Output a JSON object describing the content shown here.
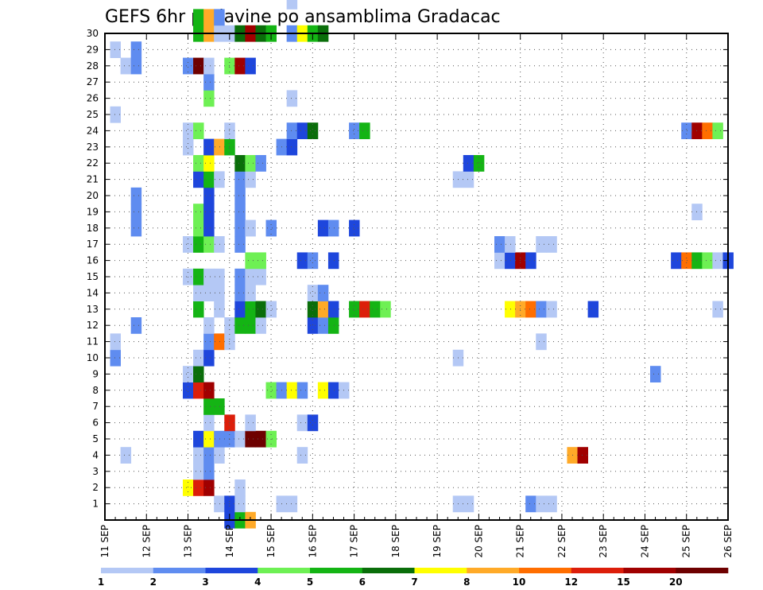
{
  "chart_data": {
    "type": "heatmap",
    "title": "GEFS 6hr padavine po ansamblima Gradacac",
    "xlabel": "",
    "ylabel": "",
    "x_ticks": [
      "11 SEP",
      "12 SEP",
      "13 SEP",
      "14 SEP",
      "15 SEP",
      "16 SEP",
      "17 SEP",
      "18 SEP",
      "19 SEP",
      "20 SEP",
      "21 SEP",
      "22 SEP",
      "23 SEP",
      "24 SEP",
      "25 SEP",
      "26 SEP"
    ],
    "y_ticks": [
      1,
      2,
      3,
      4,
      5,
      6,
      7,
      8,
      9,
      10,
      11,
      12,
      13,
      14,
      15,
      16,
      17,
      18,
      19,
      20,
      21,
      22,
      23,
      24,
      25,
      26,
      27,
      28,
      29,
      30
    ],
    "xlim": [
      0,
      60
    ],
    "ylim": [
      0,
      30
    ],
    "grid": true,
    "legend": {
      "placement": "bottom",
      "levels": [
        1,
        2,
        3,
        4,
        5,
        6,
        7,
        8,
        10,
        12,
        15,
        20
      ],
      "colors": [
        "#b4c8f5",
        "#5f8cf0",
        "#1e46dc",
        "#6ef054",
        "#14b414",
        "#0a6e0a",
        "#ffff00",
        "#ffaa28",
        "#ff6e00",
        "#dc1e0a",
        "#a00000",
        "#6e0000"
      ]
    },
    "cells": [
      {
        "t": 12,
        "m": 0,
        "v": 3
      },
      {
        "t": 13,
        "m": 0,
        "v": 5
      },
      {
        "t": 14,
        "m": 0,
        "v": 8
      },
      {
        "t": 11,
        "m": 1,
        "v": 1
      },
      {
        "t": 12,
        "m": 1,
        "v": 3
      },
      {
        "t": 13,
        "m": 1,
        "v": 1
      },
      {
        "t": 17,
        "m": 1,
        "v": 1
      },
      {
        "t": 18,
        "m": 1,
        "v": 1
      },
      {
        "t": 34,
        "m": 1,
        "v": 1
      },
      {
        "t": 35,
        "m": 1,
        "v": 1
      },
      {
        "t": 41,
        "m": 1,
        "v": 2
      },
      {
        "t": 42,
        "m": 1,
        "v": 1
      },
      {
        "t": 43,
        "m": 1,
        "v": 1
      },
      {
        "t": 8,
        "m": 2,
        "v": 7.5
      },
      {
        "t": 9,
        "m": 2,
        "v": 13
      },
      {
        "t": 10,
        "m": 2,
        "v": 16
      },
      {
        "t": 13,
        "m": 2,
        "v": 1
      },
      {
        "t": 9,
        "m": 3,
        "v": 1
      },
      {
        "t": 10,
        "m": 3,
        "v": 2
      },
      {
        "t": 2,
        "m": 4,
        "v": 1
      },
      {
        "t": 9,
        "m": 4,
        "v": 1
      },
      {
        "t": 10,
        "m": 4,
        "v": 2
      },
      {
        "t": 11,
        "m": 4,
        "v": 1
      },
      {
        "t": 19,
        "m": 4,
        "v": 1
      },
      {
        "t": 45,
        "m": 4,
        "v": 9
      },
      {
        "t": 46,
        "m": 4,
        "v": 18
      },
      {
        "t": 9,
        "m": 5,
        "v": 3
      },
      {
        "t": 10,
        "m": 5,
        "v": 7.5
      },
      {
        "t": 11,
        "m": 5,
        "v": 2
      },
      {
        "t": 12,
        "m": 5,
        "v": 2
      },
      {
        "t": 13,
        "m": 5,
        "v": 1
      },
      {
        "t": 14,
        "m": 5,
        "v": 25
      },
      {
        "t": 15,
        "m": 5,
        "v": 25
      },
      {
        "t": 16,
        "m": 5,
        "v": 4.5
      },
      {
        "t": 10,
        "m": 6,
        "v": 1
      },
      {
        "t": 12,
        "m": 6,
        "v": 13
      },
      {
        "t": 14,
        "m": 6,
        "v": 1
      },
      {
        "t": 19,
        "m": 6,
        "v": 1
      },
      {
        "t": 20,
        "m": 6,
        "v": 3
      },
      {
        "t": 10,
        "m": 7,
        "v": 5
      },
      {
        "t": 11,
        "m": 7,
        "v": 5
      },
      {
        "t": 8,
        "m": 8,
        "v": 3
      },
      {
        "t": 9,
        "m": 8,
        "v": 13
      },
      {
        "t": 10,
        "m": 8,
        "v": 16
      },
      {
        "t": 16,
        "m": 8,
        "v": 4.5
      },
      {
        "t": 17,
        "m": 8,
        "v": 2
      },
      {
        "t": 18,
        "m": 8,
        "v": 7.5
      },
      {
        "t": 19,
        "m": 8,
        "v": 2
      },
      {
        "t": 21,
        "m": 8,
        "v": 7.5
      },
      {
        "t": 22,
        "m": 8,
        "v": 3
      },
      {
        "t": 23,
        "m": 8,
        "v": 1
      },
      {
        "t": 8,
        "m": 9,
        "v": 1
      },
      {
        "t": 9,
        "m": 9,
        "v": 6.5
      },
      {
        "t": 53,
        "m": 9,
        "v": 2
      },
      {
        "t": 1,
        "m": 10,
        "v": 2
      },
      {
        "t": 9,
        "m": 10,
        "v": 1
      },
      {
        "t": 10,
        "m": 10,
        "v": 3
      },
      {
        "t": 34,
        "m": 10,
        "v": 1
      },
      {
        "t": 1,
        "m": 11,
        "v": 1
      },
      {
        "t": 10,
        "m": 11,
        "v": 2
      },
      {
        "t": 11,
        "m": 11,
        "v": 11
      },
      {
        "t": 12,
        "m": 11,
        "v": 1
      },
      {
        "t": 42,
        "m": 11,
        "v": 1
      },
      {
        "t": 3,
        "m": 12,
        "v": 2
      },
      {
        "t": 10,
        "m": 12,
        "v": 1
      },
      {
        "t": 12,
        "m": 12,
        "v": 1
      },
      {
        "t": 13,
        "m": 12,
        "v": 5
      },
      {
        "t": 14,
        "m": 12,
        "v": 5
      },
      {
        "t": 15,
        "m": 12,
        "v": 1
      },
      {
        "t": 20,
        "m": 12,
        "v": 3
      },
      {
        "t": 21,
        "m": 12,
        "v": 2
      },
      {
        "t": 22,
        "m": 12,
        "v": 5.5
      },
      {
        "t": 9,
        "m": 13,
        "v": 5.5
      },
      {
        "t": 11,
        "m": 13,
        "v": 1
      },
      {
        "t": 13,
        "m": 13,
        "v": 3
      },
      {
        "t": 14,
        "m": 13,
        "v": 5.5
      },
      {
        "t": 15,
        "m": 13,
        "v": 6.5
      },
      {
        "t": 16,
        "m": 13,
        "v": 1
      },
      {
        "t": 20,
        "m": 13,
        "v": 6.5
      },
      {
        "t": 21,
        "m": 13,
        "v": 9
      },
      {
        "t": 22,
        "m": 13,
        "v": 3
      },
      {
        "t": 24,
        "m": 13,
        "v": 5.5
      },
      {
        "t": 25,
        "m": 13,
        "v": 13
      },
      {
        "t": 26,
        "m": 13,
        "v": 5.5
      },
      {
        "t": 27,
        "m": 13,
        "v": 4.5
      },
      {
        "t": 39,
        "m": 13,
        "v": 7.5
      },
      {
        "t": 40,
        "m": 13,
        "v": 9
      },
      {
        "t": 41,
        "m": 13,
        "v": 11
      },
      {
        "t": 42,
        "m": 13,
        "v": 2
      },
      {
        "t": 43,
        "m": 13,
        "v": 1
      },
      {
        "t": 47,
        "m": 13,
        "v": 3
      },
      {
        "t": 59,
        "m": 13,
        "v": 1
      },
      {
        "t": 9,
        "m": 14,
        "v": 1
      },
      {
        "t": 10,
        "m": 14,
        "v": 1
      },
      {
        "t": 11,
        "m": 14,
        "v": 1
      },
      {
        "t": 13,
        "m": 14,
        "v": 2
      },
      {
        "t": 14,
        "m": 14,
        "v": 1
      },
      {
        "t": 20,
        "m": 14,
        "v": 1
      },
      {
        "t": 21,
        "m": 14,
        "v": 2
      },
      {
        "t": 8,
        "m": 15,
        "v": 1
      },
      {
        "t": 9,
        "m": 15,
        "v": 5.5
      },
      {
        "t": 10,
        "m": 15,
        "v": 1
      },
      {
        "t": 11,
        "m": 15,
        "v": 1
      },
      {
        "t": 13,
        "m": 15,
        "v": 2
      },
      {
        "t": 14,
        "m": 15,
        "v": 1
      },
      {
        "t": 15,
        "m": 15,
        "v": 1
      },
      {
        "t": 14,
        "m": 16,
        "v": 4.5
      },
      {
        "t": 15,
        "m": 16,
        "v": 4.5
      },
      {
        "t": 19,
        "m": 16,
        "v": 3
      },
      {
        "t": 20,
        "m": 16,
        "v": 2
      },
      {
        "t": 22,
        "m": 16,
        "v": 3
      },
      {
        "t": 38,
        "m": 16,
        "v": 1
      },
      {
        "t": 39,
        "m": 16,
        "v": 3
      },
      {
        "t": 40,
        "m": 16,
        "v": 16
      },
      {
        "t": 41,
        "m": 16,
        "v": 3
      },
      {
        "t": 55,
        "m": 16,
        "v": 3
      },
      {
        "t": 56,
        "m": 16,
        "v": 11
      },
      {
        "t": 57,
        "m": 16,
        "v": 5.5
      },
      {
        "t": 58,
        "m": 16,
        "v": 4.5
      },
      {
        "t": 59,
        "m": 16,
        "v": 1
      },
      {
        "t": 60,
        "m": 16,
        "v": 3
      },
      {
        "t": 8,
        "m": 17,
        "v": 1
      },
      {
        "t": 9,
        "m": 17,
        "v": 5.5
      },
      {
        "t": 10,
        "m": 17,
        "v": 4.5
      },
      {
        "t": 11,
        "m": 17,
        "v": 1
      },
      {
        "t": 13,
        "m": 17,
        "v": 2
      },
      {
        "t": 38,
        "m": 17,
        "v": 2
      },
      {
        "t": 39,
        "m": 17,
        "v": 1
      },
      {
        "t": 42,
        "m": 17,
        "v": 1
      },
      {
        "t": 43,
        "m": 17,
        "v": 1
      },
      {
        "t": 3,
        "m": 18,
        "v": 2
      },
      {
        "t": 9,
        "m": 18,
        "v": 4.5
      },
      {
        "t": 10,
        "m": 18,
        "v": 3
      },
      {
        "t": 13,
        "m": 18,
        "v": 2
      },
      {
        "t": 14,
        "m": 18,
        "v": 1
      },
      {
        "t": 16,
        "m": 18,
        "v": 2
      },
      {
        "t": 21,
        "m": 18,
        "v": 3
      },
      {
        "t": 22,
        "m": 18,
        "v": 2
      },
      {
        "t": 24,
        "m": 18,
        "v": 3
      },
      {
        "t": 3,
        "m": 19,
        "v": 2
      },
      {
        "t": 9,
        "m": 19,
        "v": 4.5
      },
      {
        "t": 10,
        "m": 19,
        "v": 3
      },
      {
        "t": 13,
        "m": 19,
        "v": 2
      },
      {
        "t": 57,
        "m": 19,
        "v": 1
      },
      {
        "t": 3,
        "m": 20,
        "v": 2
      },
      {
        "t": 10,
        "m": 20,
        "v": 3
      },
      {
        "t": 13,
        "m": 20,
        "v": 2
      },
      {
        "t": 9,
        "m": 21,
        "v": 3
      },
      {
        "t": 10,
        "m": 21,
        "v": 5.5
      },
      {
        "t": 11,
        "m": 21,
        "v": 1
      },
      {
        "t": 13,
        "m": 21,
        "v": 2
      },
      {
        "t": 14,
        "m": 21,
        "v": 1
      },
      {
        "t": 34,
        "m": 21,
        "v": 1
      },
      {
        "t": 35,
        "m": 21,
        "v": 1
      },
      {
        "t": 9,
        "m": 22,
        "v": 4.5
      },
      {
        "t": 10,
        "m": 22,
        "v": 7.5
      },
      {
        "t": 13,
        "m": 22,
        "v": 6.5
      },
      {
        "t": 14,
        "m": 22,
        "v": 4.5
      },
      {
        "t": 15,
        "m": 22,
        "v": 2
      },
      {
        "t": 35,
        "m": 22,
        "v": 3
      },
      {
        "t": 36,
        "m": 22,
        "v": 5
      },
      {
        "t": 8,
        "m": 23,
        "v": 1
      },
      {
        "t": 10,
        "m": 23,
        "v": 3
      },
      {
        "t": 11,
        "m": 23,
        "v": 8
      },
      {
        "t": 12,
        "m": 23,
        "v": 5.5
      },
      {
        "t": 17,
        "m": 23,
        "v": 2
      },
      {
        "t": 18,
        "m": 23,
        "v": 3
      },
      {
        "t": 8,
        "m": 24,
        "v": 1
      },
      {
        "t": 9,
        "m": 24,
        "v": 4.5
      },
      {
        "t": 12,
        "m": 24,
        "v": 1
      },
      {
        "t": 18,
        "m": 24,
        "v": 2
      },
      {
        "t": 19,
        "m": 24,
        "v": 3
      },
      {
        "t": 20,
        "m": 24,
        "v": 6.5
      },
      {
        "t": 24,
        "m": 24,
        "v": 2
      },
      {
        "t": 25,
        "m": 24,
        "v": 5.5
      },
      {
        "t": 56,
        "m": 24,
        "v": 2
      },
      {
        "t": 57,
        "m": 24,
        "v": 16
      },
      {
        "t": 58,
        "m": 24,
        "v": 11
      },
      {
        "t": 59,
        "m": 24,
        "v": 4.5
      },
      {
        "t": 1,
        "m": 25,
        "v": 1
      },
      {
        "t": 10,
        "m": 26,
        "v": 4.5
      },
      {
        "t": 18,
        "m": 26,
        "v": 1
      },
      {
        "t": 10,
        "m": 27,
        "v": 2
      },
      {
        "t": 2,
        "m": 28,
        "v": 1
      },
      {
        "t": 3,
        "m": 28,
        "v": 2
      },
      {
        "t": 8,
        "m": 28,
        "v": 2
      },
      {
        "t": 9,
        "m": 28,
        "v": 25
      },
      {
        "t": 10,
        "m": 28,
        "v": 1
      },
      {
        "t": 12,
        "m": 28,
        "v": 4.5
      },
      {
        "t": 13,
        "m": 28,
        "v": 16
      },
      {
        "t": 14,
        "m": 28,
        "v": 3
      },
      {
        "t": 1,
        "m": 29,
        "v": 1
      },
      {
        "t": 3,
        "m": 29,
        "v": 2
      },
      {
        "t": 9,
        "m": 30,
        "v": 5.5
      },
      {
        "t": 10,
        "m": 30,
        "v": 9
      },
      {
        "t": 11,
        "m": 30,
        "v": 1
      },
      {
        "t": 12,
        "m": 30,
        "v": 1
      },
      {
        "t": 13,
        "m": 30,
        "v": 6.5
      },
      {
        "t": 14,
        "m": 30,
        "v": 16
      },
      {
        "t": 15,
        "m": 30,
        "v": 6.5
      },
      {
        "t": 16,
        "m": 30,
        "v": 5.5
      },
      {
        "t": 18,
        "m": 30,
        "v": 2
      },
      {
        "t": 19,
        "m": 30,
        "v": 7.5
      },
      {
        "t": 20,
        "m": 30,
        "v": 5.5
      },
      {
        "t": 21,
        "m": 30,
        "v": 6.5
      },
      {
        "t": 9,
        "m": 31,
        "v": 5.5
      },
      {
        "t": 10,
        "m": 31,
        "v": 9
      },
      {
        "t": 11,
        "m": 31,
        "v": 2
      },
      {
        "t": 18,
        "m": 32,
        "v": 1
      },
      {
        "t": 14,
        "m": 33,
        "v": 1
      },
      {
        "t": 13,
        "m": 34,
        "v": 2
      },
      {
        "t": 14,
        "m": 34,
        "v": 1
      },
      {
        "t": 1,
        "m": 35,
        "v": 2
      },
      {
        "t": 9,
        "m": 35,
        "v": 1
      },
      {
        "t": 11,
        "m": 35,
        "v": 1
      },
      {
        "t": 14,
        "m": 35,
        "v": 9
      },
      {
        "t": 17,
        "m": 35,
        "v": 2
      },
      {
        "t": 19,
        "m": 35,
        "v": 2
      },
      {
        "t": 20,
        "m": 35,
        "v": 20
      },
      {
        "t": 21,
        "m": 35,
        "v": 25
      },
      {
        "t": 22,
        "m": 35,
        "v": 16
      },
      {
        "t": 23,
        "m": 35,
        "v": 5.5
      },
      {
        "t": 45,
        "m": 35,
        "v": 1
      },
      {
        "t": 46,
        "m": 35,
        "v": 3
      },
      {
        "t": 47,
        "m": 35,
        "v": 4.5
      },
      {
        "t": 48,
        "m": 35,
        "v": 2
      },
      {
        "t": 50,
        "m": 35,
        "v": 2
      },
      {
        "t": 51,
        "m": 35,
        "v": 6.5
      },
      {
        "t": 52,
        "m": 35,
        "v": 3
      },
      {
        "t": 53,
        "m": 35,
        "v": 1
      },
      {
        "t": 11,
        "m": 36,
        "v": 1
      },
      {
        "t": 12,
        "m": 36,
        "v": 1
      },
      {
        "t": 13,
        "m": 36,
        "v": 5
      },
      {
        "t": 15,
        "m": 36,
        "v": 3
      },
      {
        "t": 25,
        "m": 36,
        "v": 25
      },
      {
        "t": 26,
        "m": 36,
        "v": 16
      },
      {
        "t": 27,
        "m": 36,
        "v": 4.5
      },
      {
        "t": 28,
        "m": 36,
        "v": 2
      },
      {
        "t": 30,
        "m": 36,
        "v": 2
      },
      {
        "t": 31,
        "m": 36,
        "v": 2
      },
      {
        "t": 32,
        "m": 36,
        "v": 2
      },
      {
        "t": 33,
        "m": 36,
        "v": 3
      },
      {
        "t": 34,
        "m": 36,
        "v": 3
      },
      {
        "t": 35,
        "m": 36,
        "v": 1
      },
      {
        "t": 36,
        "m": 36,
        "v": 3
      },
      {
        "t": 37,
        "m": 36,
        "v": 7.5
      },
      {
        "t": 38,
        "m": 36,
        "v": 13
      },
      {
        "t": 39,
        "m": 36,
        "v": 3
      },
      {
        "t": 40,
        "m": 36,
        "v": 1
      }
    ]
  }
}
